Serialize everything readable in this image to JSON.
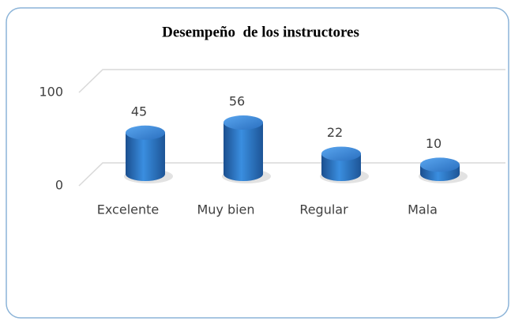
{
  "chart_data": {
    "type": "bar",
    "title": "Desempeño  de los instructores",
    "categories": [
      "Excelente",
      "Muy bien",
      "Regular",
      "Mala"
    ],
    "values": [
      45,
      56,
      22,
      10
    ],
    "color": "#2e75c8",
    "ylim": [
      0,
      100
    ],
    "yticks": [
      0,
      100
    ],
    "grid": true
  }
}
